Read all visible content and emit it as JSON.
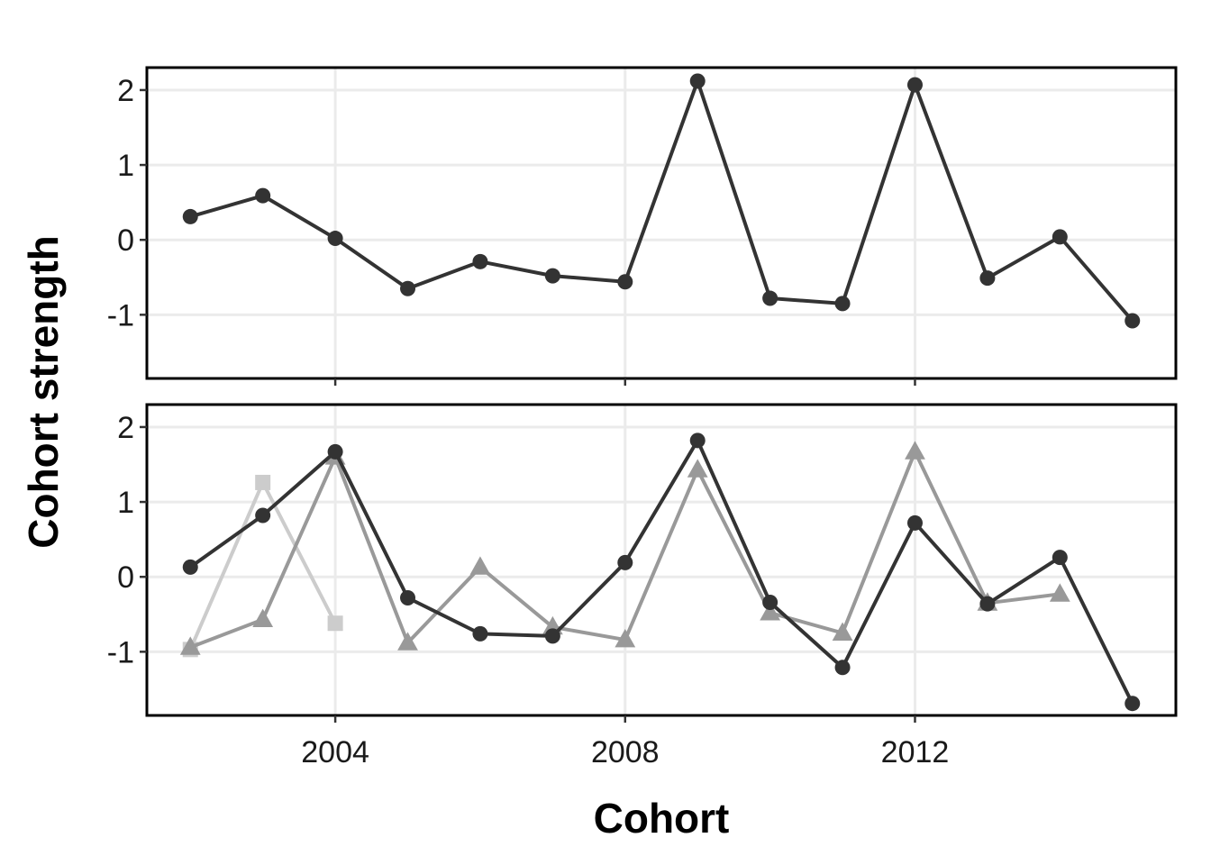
{
  "chart_data": [
    {
      "type": "line",
      "panel": "top",
      "x": [
        2002,
        2003,
        2004,
        2005,
        2006,
        2007,
        2008,
        2009,
        2010,
        2011,
        2012,
        2013,
        2014,
        2015
      ],
      "xlim": [
        2001.4,
        2015.6
      ],
      "ylim": [
        -1.85,
        2.3
      ],
      "yticks": [
        -1,
        0,
        1,
        2
      ],
      "ytick_labels": [
        "-1",
        "0",
        "1",
        "2"
      ],
      "xticks": [
        2004,
        2008,
        2012
      ],
      "grid": true,
      "series": [
        {
          "color": "#333333",
          "marker": "circle",
          "values": [
            0.31,
            0.59,
            0.02,
            -0.65,
            -0.29,
            -0.48,
            -0.56,
            2.12,
            -0.78,
            -0.85,
            2.07,
            -0.51,
            0.04,
            -1.08
          ]
        }
      ]
    },
    {
      "type": "line",
      "panel": "bottom",
      "x": [
        2002,
        2003,
        2004,
        2005,
        2006,
        2007,
        2008,
        2009,
        2010,
        2011,
        2012,
        2013,
        2014,
        2015
      ],
      "xlim": [
        2001.4,
        2015.6
      ],
      "ylim": [
        -1.85,
        2.3
      ],
      "yticks": [
        -1,
        0,
        1,
        2
      ],
      "ytick_labels": [
        "-1",
        "0",
        "1",
        "2"
      ],
      "xticks": [
        2004,
        2008,
        2012
      ],
      "xtick_labels": [
        "2004",
        "2008",
        "2012"
      ],
      "grid": true,
      "series": [
        {
          "color": "#333333",
          "marker": "circle",
          "values": [
            0.13,
            0.82,
            1.67,
            -0.28,
            -0.76,
            -0.79,
            0.19,
            1.82,
            -0.34,
            -1.21,
            0.72,
            -0.36,
            0.26,
            -1.69
          ]
        },
        {
          "color": "#999999",
          "marker": "triangle",
          "values": [
            -0.94,
            -0.57,
            1.6,
            -0.88,
            0.13,
            -0.67,
            -0.84,
            1.43,
            -0.48,
            -0.75,
            1.67,
            -0.35,
            -0.23,
            null
          ]
        },
        {
          "color": "#cccccc",
          "marker": "square",
          "values": [
            -0.97,
            1.26,
            -0.62,
            null,
            null,
            null,
            null,
            null,
            null,
            null,
            null,
            null,
            null,
            null
          ]
        }
      ]
    }
  ],
  "axes": {
    "xlabel": "Cohort",
    "ylabel": "Cohort strength"
  }
}
